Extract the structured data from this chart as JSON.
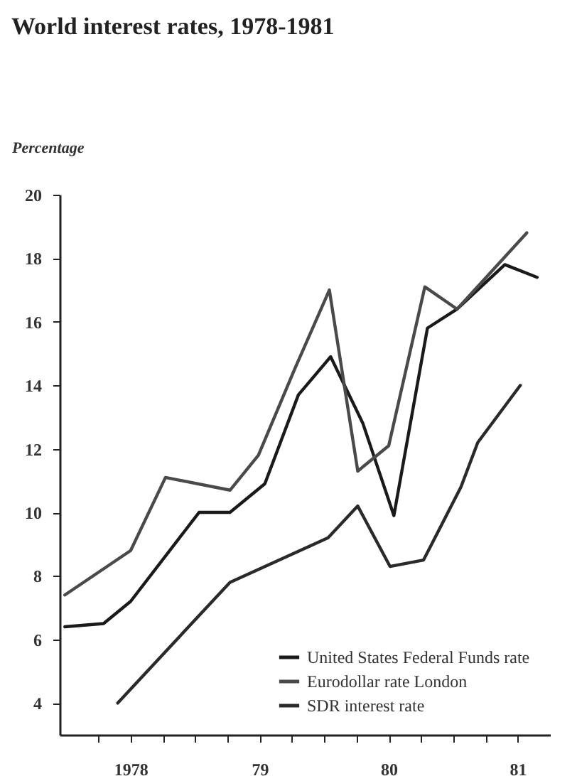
{
  "chart_data": {
    "type": "line",
    "title": "World interest rates, 1978-1981",
    "ylabel": "Percentage",
    "xlim": [
      1977.45,
      1981.25
    ],
    "xticks": [
      {
        "value": 1977.75,
        "label": null
      },
      {
        "value": 1978,
        "label": "1978"
      },
      {
        "value": 1978.25,
        "label": null
      },
      {
        "value": 1978.5,
        "label": null
      },
      {
        "value": 1978.75,
        "label": null
      },
      {
        "value": 1979,
        "label": "79"
      },
      {
        "value": 1979.25,
        "label": null
      },
      {
        "value": 1979.5,
        "label": null
      },
      {
        "value": 1979.75,
        "label": null
      },
      {
        "value": 1980,
        "label": "80"
      },
      {
        "value": 1980.25,
        "label": null
      },
      {
        "value": 1980.5,
        "label": null
      },
      {
        "value": 1980.75,
        "label": null
      },
      {
        "value": 1981,
        "label": "81"
      }
    ],
    "ylim": [
      3,
      20
    ],
    "yticks": [
      4,
      6,
      8,
      10,
      12,
      14,
      16,
      18,
      20
    ],
    "grid": false,
    "legend": "bottom right",
    "marker": "none",
    "line_style": "solid",
    "series": [
      {
        "name": "United States Federal Funds rate",
        "color": "#1a1a1a",
        "x": [
          1977.49,
          1977.79,
          1978.0,
          1978.53,
          1978.77,
          1979.04,
          1979.3,
          1979.55,
          1979.8,
          1980.04,
          1980.3,
          1980.53,
          1980.9,
          1981.15
        ],
        "values": [
          6.4,
          6.5,
          7.2,
          10.0,
          10.0,
          10.9,
          13.7,
          14.9,
          12.8,
          9.9,
          15.8,
          16.4,
          17.8,
          17.4
        ]
      },
      {
        "name": "Eurodollar rate London",
        "color": "#4a4a4a",
        "x": [
          1977.49,
          1978.0,
          1978.27,
          1978.77,
          1978.99,
          1979.27,
          1979.54,
          1979.76,
          1980.0,
          1980.28,
          1980.53,
          1981.07
        ],
        "values": [
          7.4,
          8.8,
          11.1,
          10.7,
          11.8,
          14.5,
          17.0,
          11.3,
          12.1,
          17.1,
          16.4,
          18.8
        ]
      },
      {
        "name": "SDR interest rate",
        "color": "#2a2a2a",
        "x": [
          1977.9,
          1978.77,
          1979.53,
          1979.76,
          1980.01,
          1980.27,
          1980.56,
          1980.69,
          1981.02
        ],
        "values": [
          4.0,
          7.8,
          9.2,
          10.2,
          8.3,
          8.5,
          10.8,
          12.2,
          14.0
        ]
      }
    ]
  }
}
